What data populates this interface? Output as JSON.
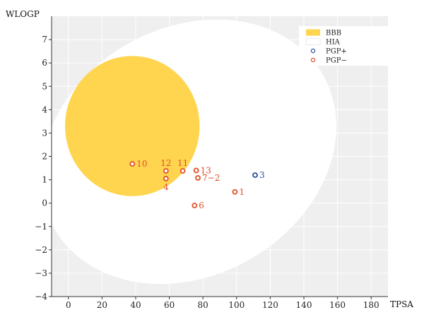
{
  "chart_data": {
    "type": "scatter",
    "xlabel": "TPSA",
    "ylabel": "WLOGP",
    "xlim": [
      -10,
      190
    ],
    "ylim": [
      -4,
      8
    ],
    "xticks": [
      0,
      20,
      40,
      60,
      80,
      100,
      120,
      140,
      160,
      180
    ],
    "yticks": [
      -4,
      -3,
      -2,
      -1,
      0,
      1,
      2,
      3,
      4,
      5,
      6,
      7
    ],
    "grid": true,
    "legend_position": "top-right",
    "legend": [
      {
        "label": "BBB",
        "kind": "region",
        "color": "#FFD54F"
      },
      {
        "label": "HIA",
        "kind": "region",
        "color": "#FFFFFF"
      },
      {
        "label": "PGP+",
        "kind": "marker",
        "color": "#2E4FA3"
      },
      {
        "label": "PGP−",
        "kind": "marker",
        "color": "#E0502A"
      }
    ],
    "regions": [
      {
        "name": "HIA",
        "color": "#FFFFFF",
        "cx": 71.5,
        "cy": 2.2,
        "rx": 92,
        "ry": 5.3,
        "angle": -30
      },
      {
        "name": "BBB",
        "color": "#FFD54F",
        "cx": 38,
        "cy": 3.3,
        "rx": 40,
        "ry": 3.0,
        "angle": 0
      }
    ],
    "points": [
      {
        "label": "10",
        "x": 38,
        "y": 1.68,
        "group": "PGP−",
        "label_pos": "right"
      },
      {
        "label": "12",
        "x": 58,
        "y": 1.38,
        "group": "PGP−",
        "label_pos": "top"
      },
      {
        "label": "4",
        "x": 58,
        "y": 1.05,
        "group": "PGP−",
        "label_pos": "bottom"
      },
      {
        "label": "11",
        "x": 68,
        "y": 1.38,
        "group": "PGP−",
        "label_pos": "top"
      },
      {
        "label": "13",
        "x": 76,
        "y": 1.4,
        "group": "PGP−",
        "label_pos": "right"
      },
      {
        "label": "7−2",
        "x": 77,
        "y": 1.08,
        "group": "PGP−",
        "label_pos": "right"
      },
      {
        "label": "1",
        "x": 99,
        "y": 0.48,
        "group": "PGP−",
        "label_pos": "right"
      },
      {
        "label": "6",
        "x": 75,
        "y": -0.1,
        "group": "PGP−",
        "label_pos": "right"
      },
      {
        "label": "3",
        "x": 111,
        "y": 1.2,
        "group": "PGP+",
        "label_pos": "right"
      }
    ],
    "colors": {
      "plot_background": "#EFEFEF",
      "grid": "#FFFFFF",
      "pgp_minus": "#E0502A",
      "pgp_plus": "#2E4FA3"
    }
  }
}
